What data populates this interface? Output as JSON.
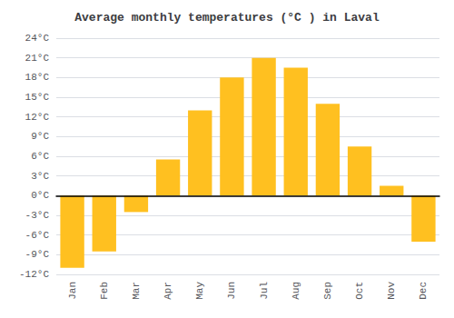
{
  "chart_data": {
    "type": "bar",
    "title": "Average monthly temperatures (°C ) in Laval",
    "categories": [
      "Jan",
      "Feb",
      "Mar",
      "Apr",
      "May",
      "Jun",
      "Jul",
      "Aug",
      "Sep",
      "Oct",
      "Nov",
      "Dec"
    ],
    "values": [
      -11,
      -8.5,
      -2.5,
      5.5,
      13,
      18,
      21,
      19.5,
      14,
      7.5,
      1.5,
      -7
    ],
    "color": "#FFC020",
    "ylim": [
      -12,
      24
    ],
    "yticks": [
      {
        "value": -12,
        "label": "-12°C"
      },
      {
        "value": -9,
        "label": "-9°C"
      },
      {
        "value": -6,
        "label": "-6°C"
      },
      {
        "value": -3,
        "label": "-3°C"
      },
      {
        "value": 0,
        "label": "0°C"
      },
      {
        "value": 3,
        "label": "3°C"
      },
      {
        "value": 6,
        "label": "6°C"
      },
      {
        "value": 9,
        "label": "9°C"
      },
      {
        "value": 12,
        "label": "12°C"
      },
      {
        "value": 15,
        "label": "15°C"
      },
      {
        "value": 18,
        "label": "18°C"
      },
      {
        "value": 21,
        "label": "21°C"
      },
      {
        "value": 24,
        "label": "24°C"
      }
    ],
    "grid": true
  }
}
